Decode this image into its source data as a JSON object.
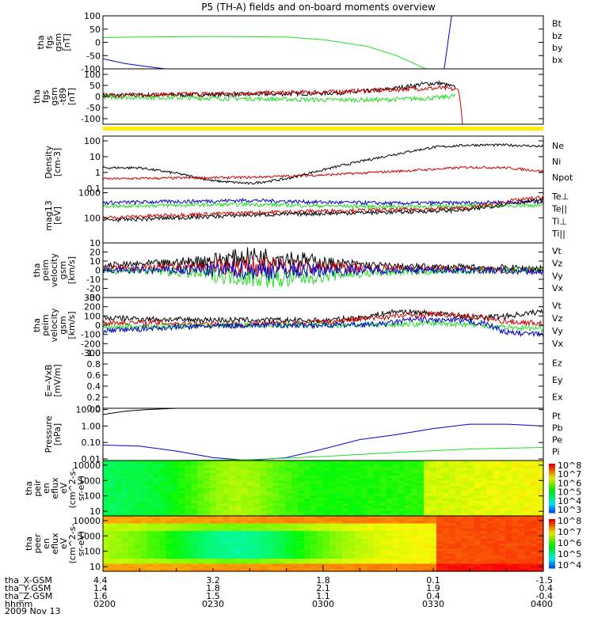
{
  "title": "P5 (TH-A) fields and on-board moments overview",
  "date_label": "2009 Nov 13",
  "colors": {
    "black": "#000000",
    "red": "#cc0000",
    "green": "#22dd22",
    "blue": "#0000cc",
    "yellow": "#ffee00"
  },
  "chart_data": [
    {
      "type": "line",
      "name": "fgs",
      "ylabel": [
        "tha",
        "fgs",
        "gsm",
        "[nT]"
      ],
      "ylim": [
        -100,
        100
      ],
      "yticks": [
        "100",
        "50",
        "0",
        "-50",
        "-100"
      ],
      "legend": [
        {
          "label": "Bt",
          "color": "#000000"
        },
        {
          "label": "bz",
          "color": "#cc0000"
        },
        {
          "label": "by",
          "color": "#22dd22"
        },
        {
          "label": "bx",
          "color": "#0000cc"
        }
      ],
      "series": [
        {
          "name": "by",
          "color": "#22dd22",
          "x": [
            0,
            5,
            15,
            25,
            30,
            36,
            40,
            44
          ],
          "y": [
            18,
            20,
            22,
            20,
            10,
            -15,
            -50,
            -100
          ]
        },
        {
          "name": "bx",
          "color": "#0000cc",
          "x": [
            0,
            3,
            7,
            8.5,
            46.5,
            47.5
          ],
          "y": [
            -62,
            -80,
            -95,
            -100,
            -100,
            100
          ]
        }
      ]
    },
    {
      "type": "line",
      "name": "fgs-t89",
      "ylabel": [
        "tha",
        "fgs",
        "gsm",
        "-t89",
        "[nT]"
      ],
      "ylim": [
        -125,
        125
      ],
      "yticks": [
        "100",
        "50",
        "0",
        "-50",
        "-100"
      ],
      "legend": [],
      "series": [
        {
          "name": "Bt",
          "color": "#000000",
          "x": [
            0,
            10,
            20,
            30,
            34,
            38,
            40,
            42,
            44,
            46,
            48
          ],
          "y": [
            5,
            8,
            10,
            15,
            20,
            30,
            38,
            48,
            58,
            60,
            40
          ]
        },
        {
          "name": "bz",
          "color": "#cc0000",
          "x": [
            0,
            10,
            20,
            30,
            38,
            42,
            46,
            48.5,
            49
          ],
          "y": [
            4,
            10,
            15,
            20,
            28,
            35,
            38,
            30,
            -125
          ]
        },
        {
          "name": "by",
          "color": "#22dd22",
          "x": [
            0,
            10,
            20,
            30,
            38,
            42,
            46,
            48
          ],
          "y": [
            -2,
            -5,
            -10,
            -15,
            -15,
            -10,
            -5,
            5
          ]
        }
      ]
    },
    {
      "type": "line",
      "name": "density",
      "ylabel": [
        "Density",
        "[cm-3]"
      ],
      "ylim": [
        0.1,
        200
      ],
      "log": true,
      "yticks": [
        "100",
        "10",
        "1",
        "0.1"
      ],
      "legend": [
        {
          "label": "Ne",
          "color": "#cc0000"
        },
        {
          "label": "Ni",
          "color": "#000000"
        },
        {
          "label": "Npot",
          "color": "#0000cc"
        }
      ],
      "series": [
        {
          "name": "Ni",
          "color": "#000000",
          "x": [
            0,
            5,
            10,
            15,
            20,
            25,
            30,
            35,
            40,
            45,
            50,
            55,
            60
          ],
          "y": [
            2,
            2,
            0.9,
            0.3,
            0.2,
            0.4,
            1.5,
            5,
            15,
            40,
            55,
            55,
            45
          ]
        },
        {
          "name": "Ne",
          "color": "#cc0000",
          "x": [
            0,
            10,
            20,
            30,
            40,
            45,
            50,
            55,
            60
          ],
          "y": [
            0.4,
            0.45,
            0.5,
            0.7,
            1.2,
            1.6,
            2.2,
            2,
            1.2
          ]
        }
      ]
    },
    {
      "type": "line",
      "name": "temperature",
      "ylabel": [
        "mag13",
        "[eV]"
      ],
      "ylim": [
        10,
        1500
      ],
      "log": true,
      "yticks": [
        "1000",
        "100",
        "10"
      ],
      "legend": [
        {
          "label": "Te⊥",
          "color": "#cc0000"
        },
        {
          "label": "Te||",
          "color": "#000000"
        },
        {
          "label": "Ti⊥",
          "color": "#0000cc"
        },
        {
          "label": "Ti||",
          "color": "#22dd22"
        }
      ],
      "series": [
        {
          "name": "Ti⊥",
          "color": "#0000cc",
          "x": [
            0,
            10,
            20,
            30,
            40,
            50,
            60
          ],
          "y": [
            400,
            450,
            500,
            420,
            380,
            400,
            450
          ]
        },
        {
          "name": "Ti||",
          "color": "#22dd22",
          "x": [
            0,
            10,
            20,
            30,
            40,
            50,
            60
          ],
          "y": [
            300,
            320,
            350,
            300,
            280,
            300,
            320
          ]
        },
        {
          "name": "Te⊥",
          "color": "#cc0000",
          "x": [
            0,
            10,
            20,
            30,
            40,
            50,
            56,
            60
          ],
          "y": [
            100,
            130,
            160,
            190,
            210,
            250,
            500,
            650
          ]
        },
        {
          "name": "Te||",
          "color": "#000000",
          "x": [
            0,
            10,
            20,
            30,
            40,
            50,
            56,
            60
          ],
          "y": [
            80,
            100,
            130,
            150,
            170,
            210,
            400,
            500
          ]
        }
      ]
    },
    {
      "type": "line",
      "name": "peim-velocity-small",
      "ylabel": [
        "tha",
        "peim",
        "velocity",
        "gsm",
        "[km/s]"
      ],
      "ylim": [
        -30,
        30
      ],
      "yticks": [
        "20",
        "10",
        "0",
        "-10",
        "-20",
        "-30"
      ],
      "legend": [
        {
          "label": "Vt",
          "color": "#000000"
        },
        {
          "label": "Vz",
          "color": "#cc0000"
        },
        {
          "label": "Vy",
          "color": "#22dd22"
        },
        {
          "label": "Vx",
          "color": "#0000cc"
        }
      ],
      "series": [
        {
          "name": "Vt",
          "color": "#000000",
          "x": [
            0,
            10,
            20,
            25,
            30,
            40,
            50,
            60
          ],
          "y": [
            5,
            8,
            15,
            14,
            8,
            4,
            3,
            2
          ]
        },
        {
          "name": "Vz",
          "color": "#cc0000",
          "x": [
            0,
            10,
            20,
            30,
            40,
            50,
            60
          ],
          "y": [
            2,
            3,
            4,
            3,
            2,
            1,
            0
          ]
        },
        {
          "name": "Vy",
          "color": "#22dd22",
          "x": [
            0,
            10,
            15,
            20,
            25,
            30,
            40,
            50,
            60
          ],
          "y": [
            0,
            -2,
            -5,
            -8,
            -10,
            -6,
            -2,
            -1,
            0
          ]
        },
        {
          "name": "Vx",
          "color": "#0000cc",
          "x": [
            0,
            20,
            40,
            50,
            55,
            60
          ],
          "y": [
            0,
            0,
            0,
            0,
            -1,
            -2
          ]
        }
      ]
    },
    {
      "type": "line",
      "name": "peim-velocity-large",
      "ylabel": [
        "tha",
        "peim",
        "velocity",
        "gsm",
        "[km/s]"
      ],
      "ylim": [
        -300,
        300
      ],
      "yticks": [
        "300",
        "200",
        "100",
        "0",
        "-100",
        "-200",
        "-300"
      ],
      "legend": [
        {
          "label": "Vt",
          "color": "#000000"
        },
        {
          "label": "Vz",
          "color": "#cc0000"
        },
        {
          "label": "Vy",
          "color": "#22dd22"
        },
        {
          "label": "Vx",
          "color": "#0000cc"
        }
      ],
      "series": [
        {
          "name": "Vt",
          "color": "#000000",
          "x": [
            0,
            10,
            20,
            30,
            35,
            40,
            45,
            50,
            55,
            60
          ],
          "y": [
            80,
            60,
            55,
            50,
            80,
            150,
            130,
            80,
            100,
            150
          ]
        },
        {
          "name": "Vz",
          "color": "#cc0000",
          "x": [
            0,
            10,
            20,
            30,
            40,
            45,
            50,
            55,
            60
          ],
          "y": [
            30,
            20,
            10,
            30,
            100,
            120,
            100,
            40,
            20
          ]
        },
        {
          "name": "Vy",
          "color": "#22dd22",
          "x": [
            0,
            10,
            20,
            30,
            40,
            45,
            50,
            55,
            60
          ],
          "y": [
            -20,
            -10,
            0,
            0,
            10,
            20,
            10,
            -20,
            -40
          ]
        },
        {
          "name": "Vx",
          "color": "#0000cc",
          "x": [
            0,
            10,
            20,
            30,
            38,
            42,
            48,
            52,
            55,
            60
          ],
          "y": [
            -60,
            -20,
            0,
            0,
            10,
            60,
            50,
            20,
            -80,
            -100
          ]
        }
      ]
    },
    {
      "type": "line",
      "name": "efield",
      "ylabel": [
        "E=-VxB",
        "[mV/m]"
      ],
      "ylim": [
        0,
        1
      ],
      "yticks": [
        "1.0",
        "0.8",
        "0.6",
        "0.4",
        "0.2",
        "0.0"
      ],
      "legend": [
        {
          "label": "Ez",
          "color": "#cc0000"
        },
        {
          "label": "Ey",
          "color": "#22dd22"
        },
        {
          "label": "Ex",
          "color": "#0000cc"
        }
      ],
      "series": []
    },
    {
      "type": "line",
      "name": "pressure",
      "ylabel": [
        "Pressure",
        "[nPa]"
      ],
      "ylim": [
        0.008,
        12
      ],
      "log": true,
      "yticks": [
        "10.00",
        "1.00",
        "0.10",
        "0.01"
      ],
      "legend": [
        {
          "label": "Pt",
          "color": "#000000"
        },
        {
          "label": "Pb",
          "color": "#cc0000"
        },
        {
          "label": "Pe",
          "color": "#22dd22"
        },
        {
          "label": "Pi",
          "color": "#0000cc"
        }
      ],
      "series": [
        {
          "name": "Pt",
          "color": "#000000",
          "x": [
            0,
            3,
            6,
            10
          ],
          "y": [
            5,
            8,
            10,
            12
          ]
        },
        {
          "name": "Pi",
          "color": "#0000cc",
          "x": [
            0,
            5,
            10,
            15,
            20,
            25,
            30,
            35,
            40,
            45,
            50,
            55,
            60
          ],
          "y": [
            0.07,
            0.06,
            0.03,
            0.012,
            0.008,
            0.012,
            0.04,
            0.15,
            0.3,
            0.7,
            1.3,
            1.3,
            1.0
          ]
        },
        {
          "name": "Pe",
          "color": "#22dd22",
          "x": [
            0,
            10,
            20,
            30,
            40,
            50,
            60
          ],
          "y": [
            0.008,
            0.008,
            0.009,
            0.014,
            0.025,
            0.04,
            0.05
          ]
        }
      ]
    },
    {
      "type": "heatmap",
      "name": "peir-eflux",
      "ylabel": [
        "tha",
        "peir",
        "en",
        "eflux",
        "eV",
        "(cm^2-s-",
        "sr-eV)"
      ],
      "ylim": [
        5,
        20000
      ],
      "log": true,
      "yticks": [
        "10000",
        "1000",
        "100",
        "10"
      ],
      "colorbar": [
        "10^8",
        "10^7",
        "10^6",
        "10^5",
        "10^4",
        "10^3"
      ]
    },
    {
      "type": "heatmap",
      "name": "peer-eflux",
      "ylabel": [
        "tha",
        "peer",
        "en",
        "eflux",
        "eV",
        "(cm^2-s-",
        "sr-eV)"
      ],
      "ylim": [
        5,
        20000
      ],
      "log": true,
      "yticks": [
        "10000",
        "1000",
        "100",
        "10"
      ],
      "colorbar": [
        "10^8",
        "10^7",
        "10^6",
        "10^5",
        "10^4"
      ]
    }
  ],
  "xaxis": {
    "rows": [
      {
        "label": "tha_X-GSM",
        "values": [
          "4.4",
          "3.2",
          "1.8",
          "0.1",
          "-1.5"
        ]
      },
      {
        "label": "tha_Y-GSM",
        "values": [
          "1.4",
          "1.8",
          "2.1",
          "1.9",
          "0.4"
        ]
      },
      {
        "label": "tha_Z-GSM",
        "values": [
          "1.6",
          "1.5",
          "1.1",
          "0.4",
          "-0.4"
        ]
      },
      {
        "label": "hhmm",
        "values": [
          "0200",
          "0230",
          "0300",
          "0330",
          "0400"
        ]
      }
    ],
    "xlim": [
      0,
      60
    ]
  }
}
